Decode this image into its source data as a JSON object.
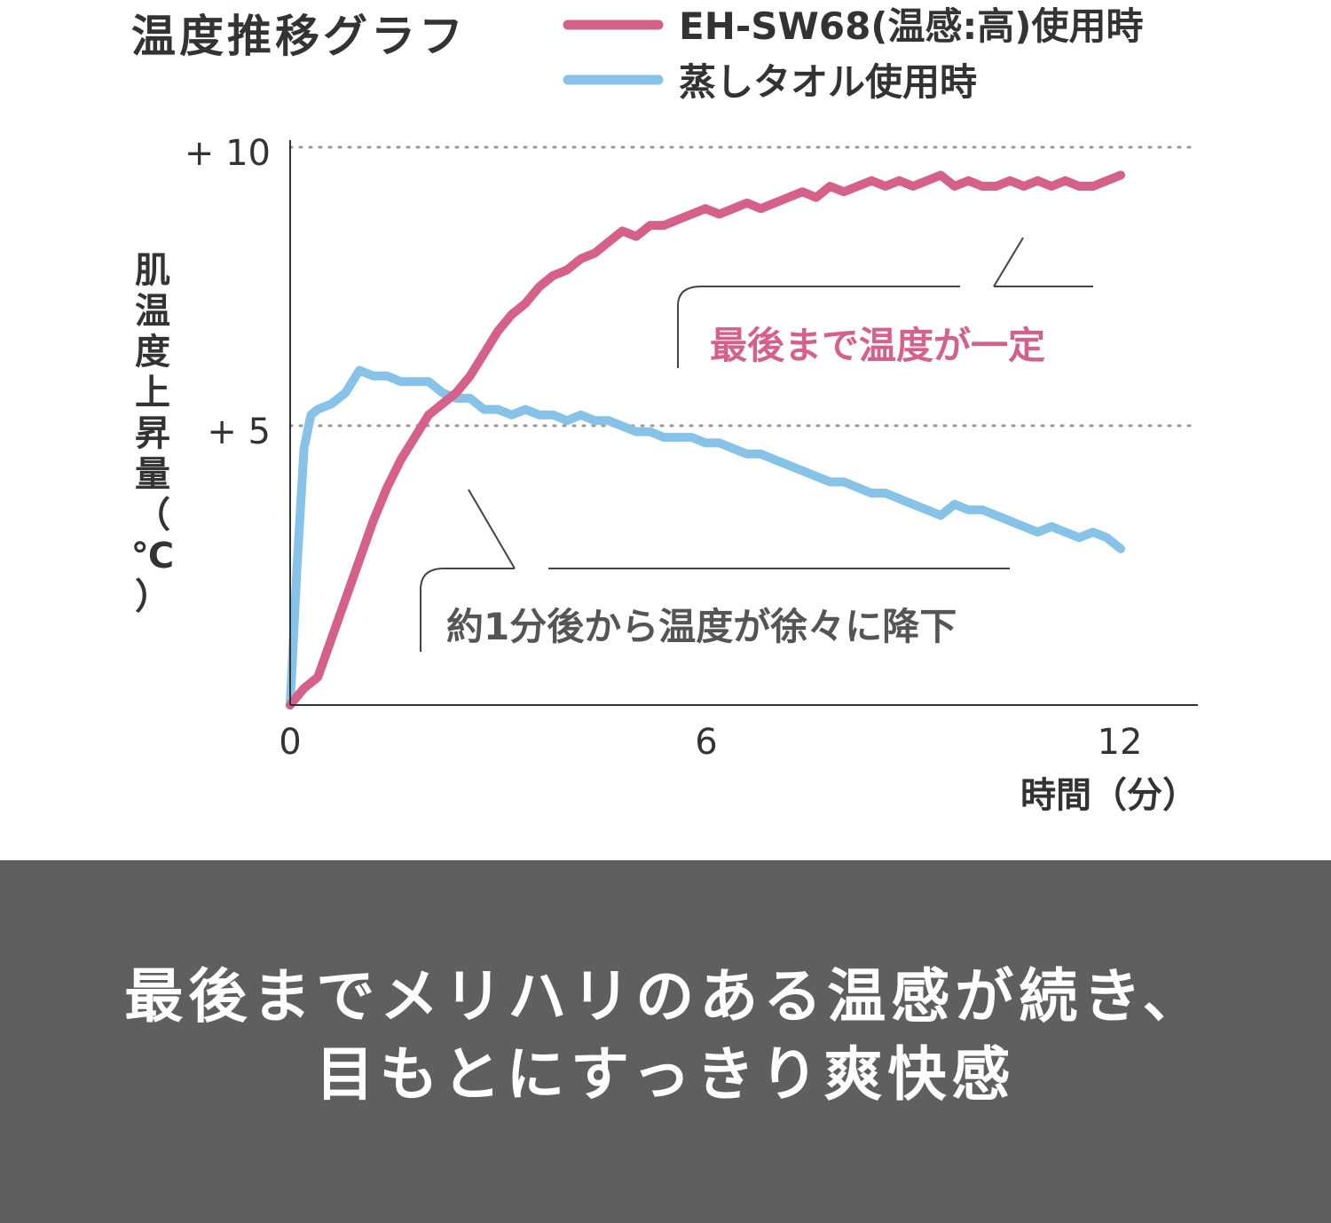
{
  "colors": {
    "eh_line": "#d5608a",
    "towel_line": "#87c2e8",
    "axis": "#333333",
    "grid": "#999999",
    "text": "#333333",
    "annotation_pink": "#d5608a",
    "annotation_gray": "#555555",
    "callout_line": "#444444",
    "banner_bg": "#5f5f5f",
    "banner_text": "#ffffff"
  },
  "chart_data": {
    "type": "line",
    "title": "温度推移グラフ",
    "xlabel": "時間（分）",
    "ylabel": "肌温度上昇量（℃）",
    "xlim": [
      0,
      13
    ],
    "ylim": [
      0,
      10
    ],
    "x_ticks": [
      0,
      6,
      12
    ],
    "x_tick_labels": [
      "0",
      "6",
      "12"
    ],
    "y_ticks": [
      5,
      10
    ],
    "y_tick_labels": [
      "+ 5",
      "+ 10"
    ],
    "grid": "dotted horizontal at +5 and +10",
    "legend_position": "top",
    "series": [
      {
        "name": "EH-SW68(温感:高)使用時",
        "color": "#d5608a",
        "x": [
          0,
          0.2,
          0.4,
          0.6,
          0.8,
          1.0,
          1.2,
          1.4,
          1.6,
          1.8,
          2.0,
          2.2,
          2.4,
          2.6,
          2.8,
          3.0,
          3.2,
          3.4,
          3.6,
          3.8,
          4.0,
          4.2,
          4.4,
          4.6,
          4.8,
          5.0,
          5.2,
          5.4,
          5.6,
          5.8,
          6.0,
          6.2,
          6.4,
          6.6,
          6.8,
          7.0,
          7.2,
          7.4,
          7.6,
          7.8,
          8.0,
          8.2,
          8.4,
          8.6,
          8.8,
          9.0,
          9.2,
          9.4,
          9.6,
          9.8,
          10.0,
          10.2,
          10.4,
          10.6,
          10.8,
          11.0,
          11.2,
          11.4,
          11.6,
          11.8,
          12.0
        ],
        "y": [
          0,
          0.3,
          0.5,
          1.2,
          1.9,
          2.6,
          3.3,
          3.9,
          4.4,
          4.8,
          5.2,
          5.4,
          5.6,
          5.9,
          6.3,
          6.7,
          7.0,
          7.2,
          7.5,
          7.7,
          7.8,
          8.0,
          8.1,
          8.3,
          8.5,
          8.4,
          8.6,
          8.6,
          8.7,
          8.8,
          8.9,
          8.8,
          8.9,
          9.0,
          8.9,
          9.0,
          9.1,
          9.2,
          9.1,
          9.3,
          9.2,
          9.3,
          9.4,
          9.3,
          9.4,
          9.3,
          9.4,
          9.5,
          9.3,
          9.4,
          9.3,
          9.3,
          9.4,
          9.3,
          9.4,
          9.3,
          9.4,
          9.3,
          9.3,
          9.4,
          9.5
        ]
      },
      {
        "name": "蒸しタオル使用時",
        "color": "#87c2e8",
        "x": [
          0,
          0.1,
          0.2,
          0.3,
          0.4,
          0.6,
          0.8,
          1.0,
          1.2,
          1.4,
          1.6,
          1.8,
          2.0,
          2.2,
          2.4,
          2.6,
          2.8,
          3.0,
          3.2,
          3.4,
          3.6,
          3.8,
          4.0,
          4.2,
          4.4,
          4.6,
          4.8,
          5.0,
          5.2,
          5.4,
          5.6,
          5.8,
          6.0,
          6.2,
          6.4,
          6.6,
          6.8,
          7.0,
          7.2,
          7.4,
          7.6,
          7.8,
          8.0,
          8.2,
          8.4,
          8.6,
          8.8,
          9.0,
          9.2,
          9.4,
          9.6,
          9.8,
          10.0,
          10.2,
          10.4,
          10.6,
          10.8,
          11.0,
          11.2,
          11.4,
          11.6,
          11.8,
          12.0
        ],
        "y": [
          0,
          2.5,
          4.6,
          5.2,
          5.3,
          5.4,
          5.6,
          6.0,
          5.9,
          5.9,
          5.8,
          5.8,
          5.8,
          5.6,
          5.5,
          5.5,
          5.3,
          5.3,
          5.2,
          5.3,
          5.2,
          5.2,
          5.1,
          5.2,
          5.1,
          5.1,
          5.0,
          4.9,
          4.9,
          4.8,
          4.8,
          4.8,
          4.7,
          4.7,
          4.6,
          4.5,
          4.5,
          4.4,
          4.3,
          4.2,
          4.1,
          4.0,
          4.0,
          3.9,
          3.8,
          3.8,
          3.7,
          3.6,
          3.5,
          3.4,
          3.6,
          3.5,
          3.5,
          3.4,
          3.3,
          3.2,
          3.1,
          3.2,
          3.1,
          3.0,
          3.1,
          3.0,
          2.8
        ]
      }
    ],
    "annotations": [
      {
        "text": "最後まで温度が一定"
      },
      {
        "text": "約1分後から温度が徐々に降下"
      }
    ]
  },
  "banner": {
    "line1": "最後までメリハリのある温感が続き、",
    "line2": "目もとにすっきり爽快感"
  }
}
